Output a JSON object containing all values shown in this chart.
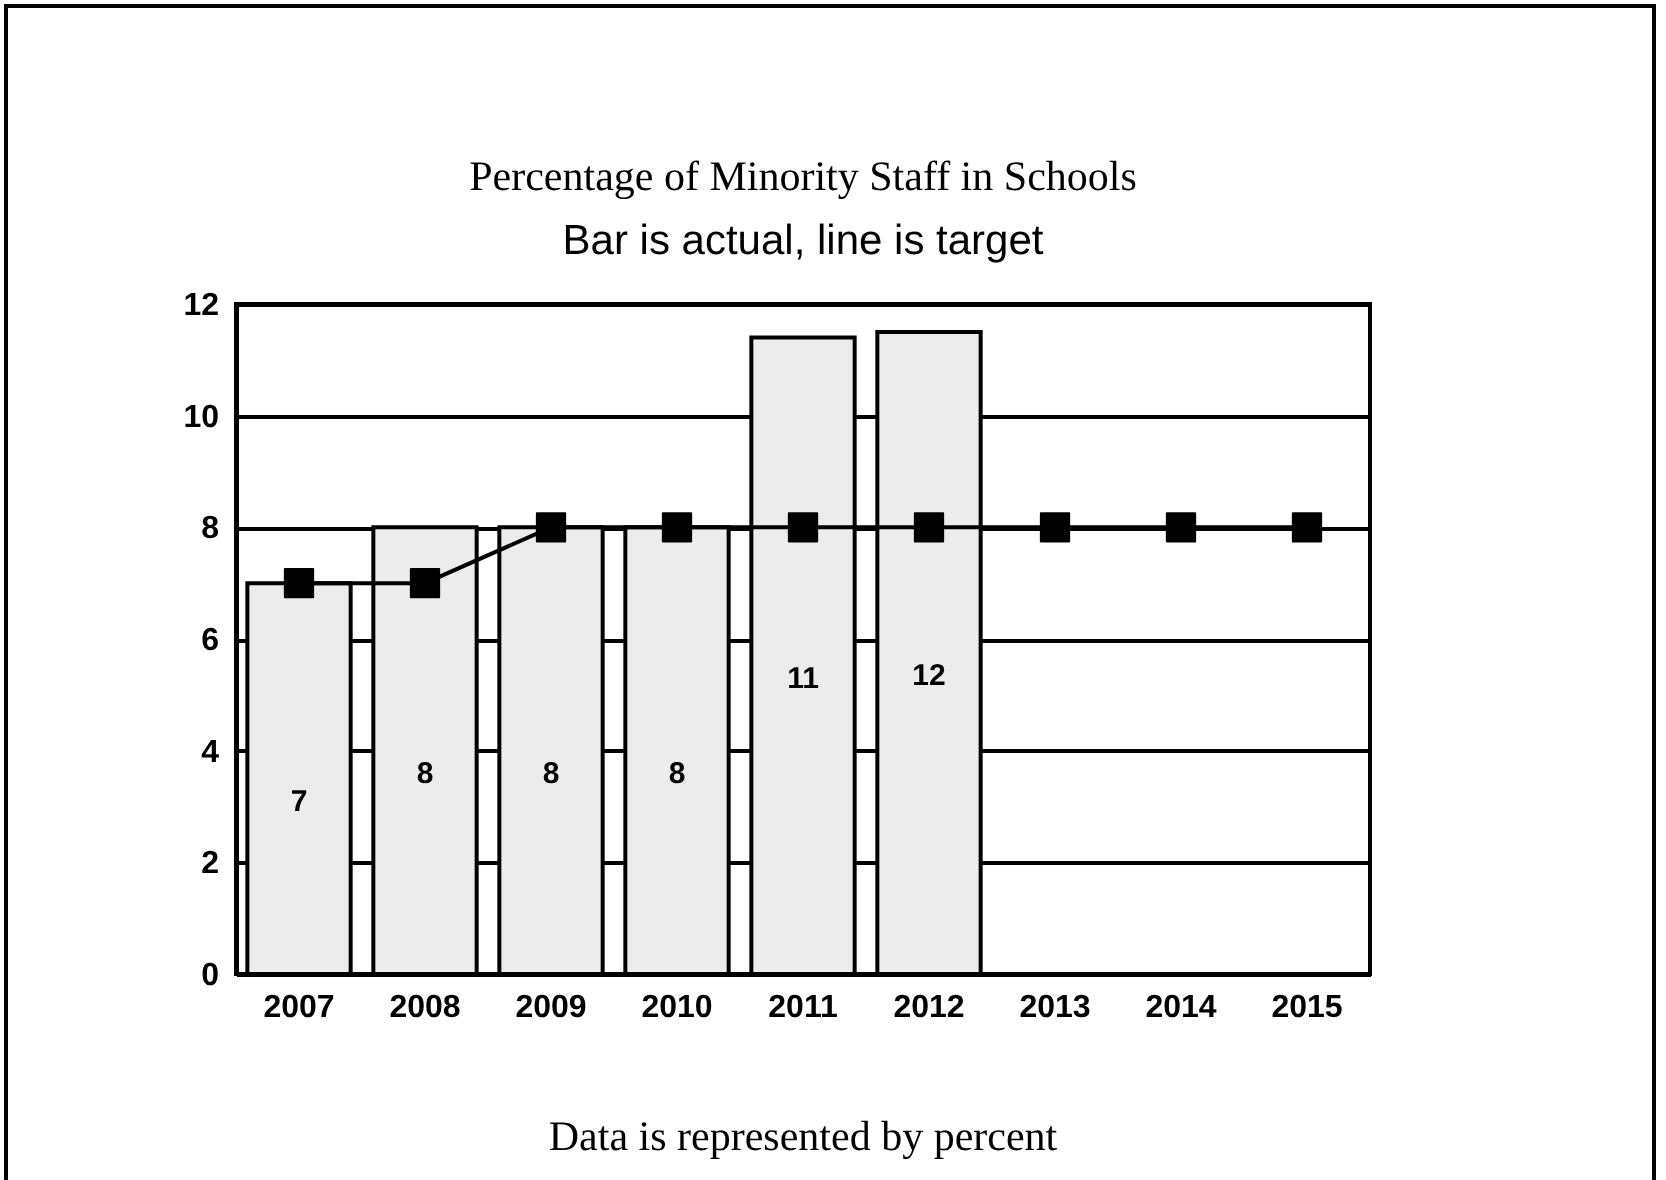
{
  "chart_data": {
    "type": "bar",
    "title": "Percentage of Minority Staff in Schools",
    "subtitle": "Bar is actual, line is target",
    "annotations": [
      "Data is represented by percent"
    ],
    "categories": [
      "2007",
      "2008",
      "2009",
      "2010",
      "2011",
      "2012",
      "2013",
      "2014",
      "2015"
    ],
    "series": [
      {
        "color": "#ececec",
        "values": [
          7,
          8,
          8,
          8,
          11.4,
          11.5,
          null,
          null,
          null
        ],
        "value_labels": [
          "7",
          "8",
          "8",
          "8",
          "11",
          "12",
          null,
          null,
          null
        ]
      },
      {
        "type": "line",
        "color": "#000000",
        "values": [
          7,
          7,
          8,
          8,
          8,
          8,
          8,
          8,
          8
        ]
      }
    ],
    "marker": "square",
    "ylim": [
      0,
      12
    ],
    "yticks": [
      0,
      2,
      4,
      6,
      8,
      10,
      12
    ],
    "grid": "y"
  }
}
